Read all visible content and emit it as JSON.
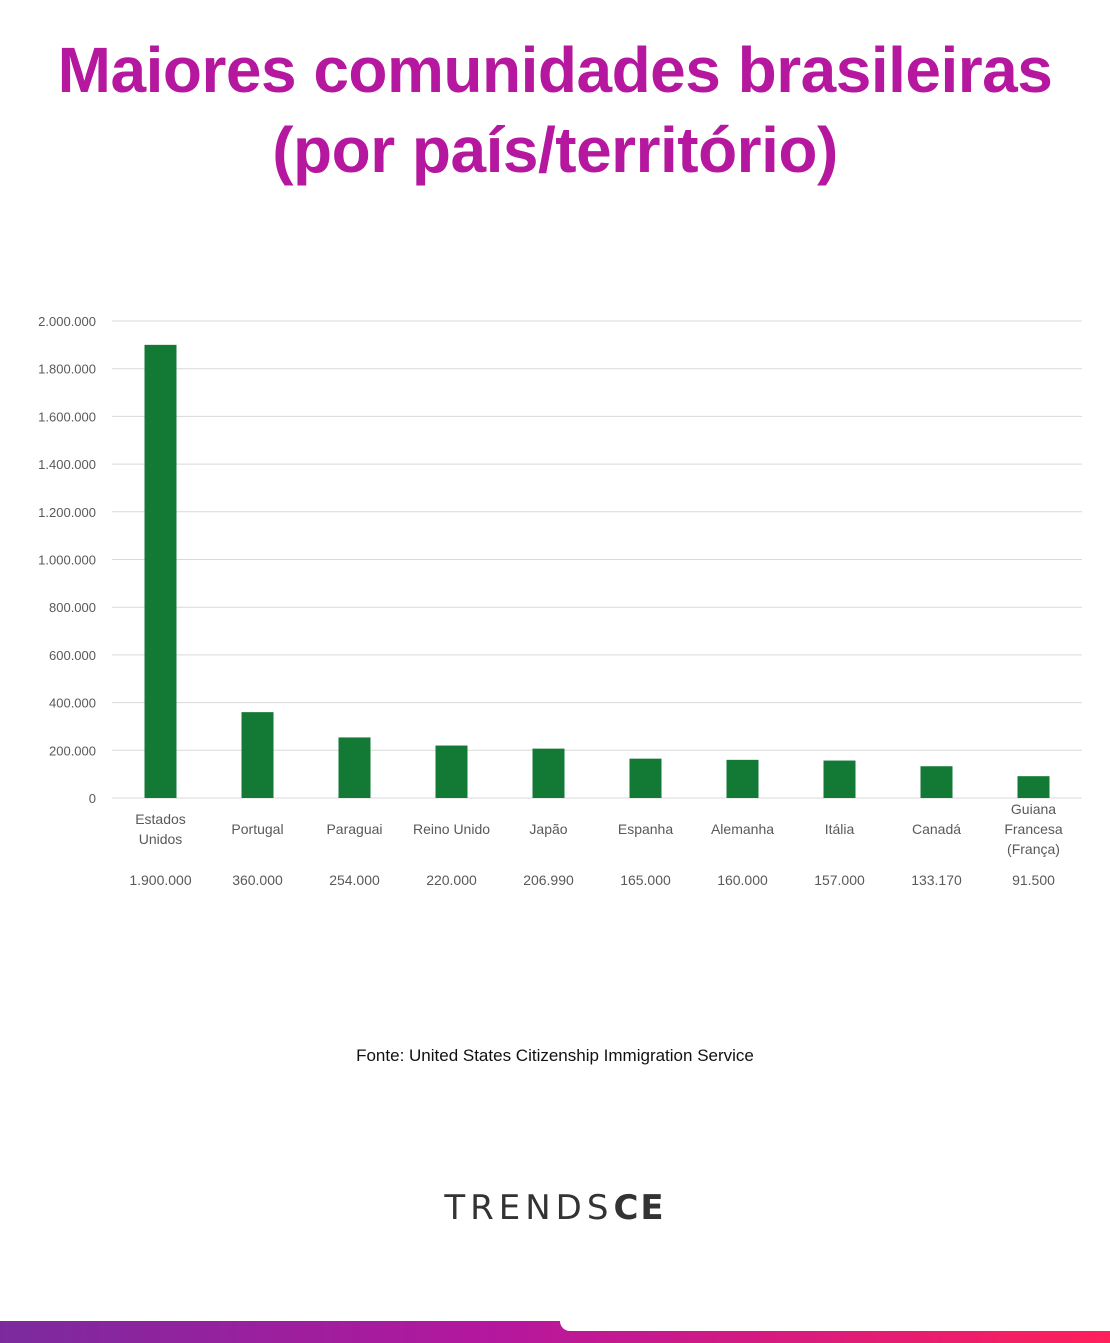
{
  "header": {
    "title_line1": "Maiores comunidades brasileiras",
    "title_line2": "(por país/território)"
  },
  "chart_data": {
    "type": "bar",
    "title": "",
    "xlabel": "",
    "ylabel": "",
    "ylim": [
      0,
      2000000
    ],
    "yticks": [
      "0",
      "200.000",
      "400.000",
      "600.000",
      "800.000",
      "1.000.000",
      "1.200.000",
      "1.400.000",
      "1.600.000",
      "1.800.000",
      "2.000.000"
    ],
    "grid": true,
    "bar_color": "#137a35",
    "categories": [
      [
        "Estados",
        "Unidos"
      ],
      [
        "Portugal"
      ],
      [
        "Paraguai"
      ],
      [
        "Reino Unido"
      ],
      [
        "Japão"
      ],
      [
        "Espanha"
      ],
      [
        "Alemanha"
      ],
      [
        "Itália"
      ],
      [
        "Canadá"
      ],
      [
        "Guiana",
        "Francesa",
        "(França)"
      ]
    ],
    "values": [
      1900000,
      360000,
      254000,
      220000,
      206990,
      165000,
      160000,
      157000,
      133170,
      91500
    ],
    "value_labels": [
      "1.900.000",
      "360.000",
      "254.000",
      "220.000",
      "206.990",
      "165.000",
      "160.000",
      "157.000",
      "133.170",
      "91.500"
    ]
  },
  "footer": {
    "source": "Fonte: United States Citizenship Immigration Service",
    "logo_light": "TRENDS",
    "logo_bold": "CE"
  },
  "colors": {
    "title": "#b5179e",
    "bars": "#137a35",
    "gradient_start": "#7b2a9e",
    "gradient_end": "#ff1f5a"
  }
}
